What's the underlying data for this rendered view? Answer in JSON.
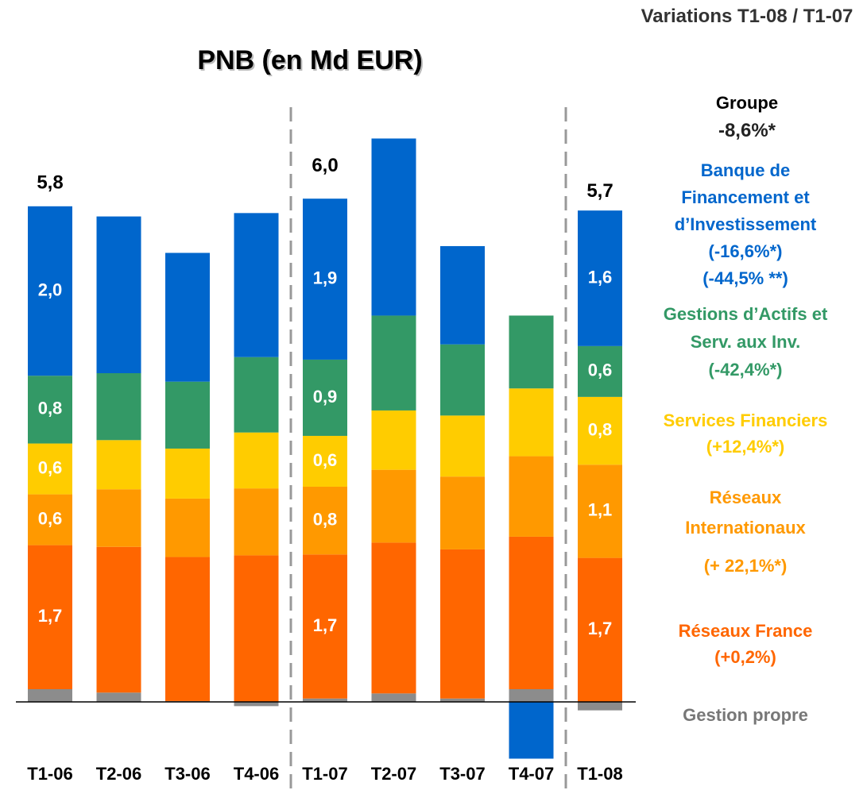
{
  "chart_data": {
    "type": "stacked_bar",
    "title": "PNB (en Md EUR)",
    "variations_title": "Variations T1-08 / T1-07",
    "group_label": "Groupe",
    "group_variation": "-8,6%*",
    "categories": [
      "T1-06",
      "T2-06",
      "T3-06",
      "T4-06",
      "T1-07",
      "T2-07",
      "T3-07",
      "T4-07",
      "T1-08"
    ],
    "totals": [
      5.8,
      null,
      null,
      null,
      6.0,
      null,
      null,
      null,
      5.7
    ],
    "total_labels": [
      "5,8",
      null,
      null,
      null,
      "6,0",
      null,
      null,
      null,
      "5,7"
    ],
    "series": [
      {
        "name": "Gestion propre",
        "color": "#8c8c8c",
        "values": [
          0.15,
          0.11,
          0.01,
          -0.05,
          0.04,
          0.1,
          0.04,
          0.15,
          -0.1
        ]
      },
      {
        "name": "Réseaux France",
        "color": "#ff6600",
        "variations": [
          "(+0,2%)"
        ],
        "values": [
          1.7,
          1.72,
          1.7,
          1.73,
          1.7,
          1.78,
          1.76,
          1.8,
          1.7
        ],
        "value_labels": [
          "1,7",
          null,
          null,
          null,
          "1,7",
          null,
          null,
          null,
          "1,7"
        ]
      },
      {
        "name": "Réseaux Internationaux",
        "color": "#ff9900",
        "variations": [
          "(+ 22,1%*)"
        ],
        "values": [
          0.6,
          0.68,
          0.69,
          0.79,
          0.8,
          0.86,
          0.86,
          0.95,
          1.1
        ],
        "value_labels": [
          "0,6",
          null,
          null,
          null,
          "0,8",
          null,
          null,
          null,
          "1,1"
        ]
      },
      {
        "name": "Services Financiers",
        "color": "#ffcc00",
        "variations": [
          "(+12,4%*)"
        ],
        "values": [
          0.6,
          0.58,
          0.59,
          0.66,
          0.6,
          0.7,
          0.72,
          0.8,
          0.8
        ],
        "value_labels": [
          "0,6",
          null,
          null,
          null,
          "0,6",
          null,
          null,
          null,
          "0,8"
        ]
      },
      {
        "name": "Gestions d’Actifs et Serv. aux Inv.",
        "color": "#339966",
        "variations": [
          "(-42,4%*)"
        ],
        "values": [
          0.8,
          0.79,
          0.79,
          0.89,
          0.9,
          1.12,
          0.84,
          0.86,
          0.6
        ],
        "value_labels": [
          "0,8",
          null,
          null,
          null,
          "0,9",
          null,
          null,
          null,
          "0,6"
        ]
      },
      {
        "name": "Banque de Financement et d’Investissement",
        "color": "#0066cc",
        "variations": [
          "(-16,6%*)",
          "(-44,5% **)"
        ],
        "values": [
          2.0,
          1.85,
          1.52,
          1.7,
          1.9,
          2.09,
          1.16,
          -0.67,
          1.6
        ],
        "value_labels": [
          "2,0",
          null,
          null,
          null,
          "1,9",
          null,
          null,
          null,
          "1,6"
        ]
      }
    ]
  }
}
